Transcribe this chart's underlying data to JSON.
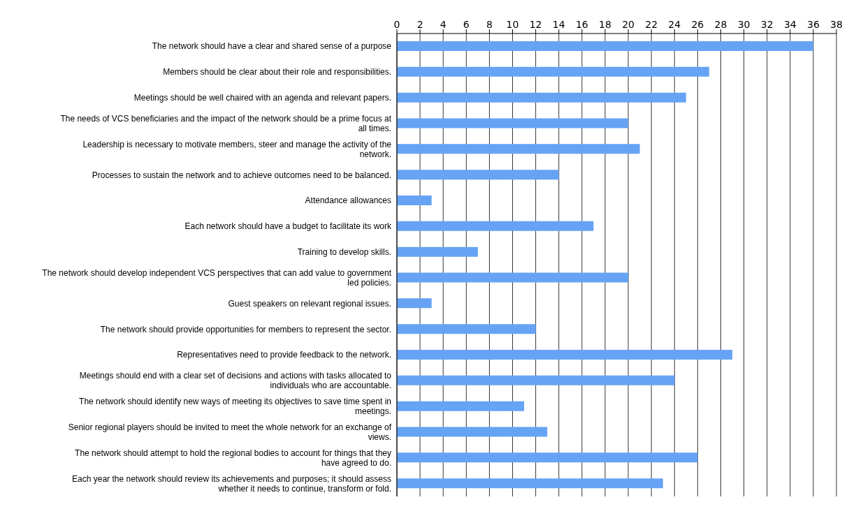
{
  "chart_data": {
    "type": "bar",
    "orientation": "horizontal",
    "categories": [
      "The network should have a clear and shared sense of a purpose",
      "Members should be clear about their role and responsibilities.",
      "Meetings should be well chaired with an agenda and relevant papers.",
      "The needs of VCS beneficiaries and the impact of the network should be a prime focus at all times.",
      "Leadership is necessary to motivate members, steer and manage the activity of the network.",
      "Processes to sustain the network and to achieve outcomes need to be balanced.",
      "Attendance allowances",
      "Each network should have a budget to facilitate its work",
      "Training to develop skills.",
      "The network should develop independent VCS perspectives that can add value to government led policies.",
      "Guest speakers on relevant regional issues.",
      "The network should provide opportunities for members to represent the sector.",
      "Representatives need to provide feedback to the network.",
      "Meetings should end with a clear set of decisions and actions with tasks allocated to individuals who are accountable.",
      "The network should identify new ways of meeting its objectives to save time spent in meetings.",
      "Senior regional players should be invited to meet the whole network for an exchange of views.",
      "The network should attempt to hold the regional bodies to account for things that they have agreed to do.",
      "Each year the network should review its achievements and purposes; it should assess whether it needs to continue, transform or fold."
    ],
    "values": [
      36,
      27,
      25,
      20,
      21,
      14,
      3,
      17,
      7,
      20,
      3,
      12,
      29,
      24,
      11,
      13,
      26,
      23
    ],
    "color": "#66a3f5",
    "xlim": [
      0,
      38
    ],
    "xticks": [
      0,
      2,
      4,
      6,
      8,
      10,
      12,
      14,
      16,
      18,
      20,
      22,
      24,
      26,
      28,
      30,
      32,
      34,
      36,
      38
    ],
    "grid": "x"
  }
}
